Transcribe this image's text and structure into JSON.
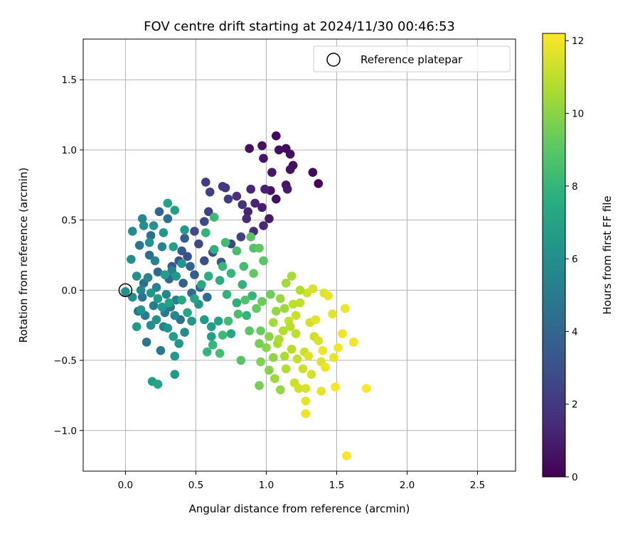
{
  "chart_data": {
    "type": "scatter",
    "title": "FOV centre drift starting at 2024/11/30 00:46:53",
    "xlabel": "Angular distance from reference (arcmin)",
    "ylabel": "Rotation from reference (arcmin)",
    "xlim": [
      -0.3,
      2.77
    ],
    "ylim": [
      -1.29,
      1.79
    ],
    "x_ticks": [
      0.0,
      0.5,
      1.0,
      1.5,
      2.0,
      2.5
    ],
    "x_tick_labels": [
      "0.0",
      "0.5",
      "1.0",
      "1.5",
      "2.0",
      "2.5"
    ],
    "y_ticks": [
      -1.0,
      -0.5,
      0.0,
      0.5,
      1.0,
      1.5
    ],
    "y_tick_labels": [
      "−1.0",
      "−0.5",
      "0.0",
      "0.5",
      "1.0",
      "1.5"
    ],
    "grid": true,
    "legend": {
      "position": "top-right",
      "entries": [
        "Reference platepar"
      ]
    },
    "reference_point": {
      "x": 0.0,
      "y": 0.0
    },
    "colorbar": {
      "label": "Hours from first FF file",
      "colormap": "viridis",
      "range": [
        0,
        12.2
      ],
      "ticks": [
        0,
        2,
        4,
        6,
        8,
        10,
        12
      ],
      "tick_labels": [
        "0",
        "2",
        "4",
        "6",
        "8",
        "10",
        "12"
      ]
    },
    "points": [
      [
        1.07,
        1.1,
        0.3
      ],
      [
        0.88,
        1.01,
        0.5
      ],
      [
        0.97,
        1.03,
        0.6
      ],
      [
        1.09,
        1.0,
        0.4
      ],
      [
        1.14,
        1.01,
        0.3
      ],
      [
        0.98,
        0.94,
        0.7
      ],
      [
        1.17,
        0.97,
        0.5
      ],
      [
        1.19,
        0.89,
        0.4
      ],
      [
        1.17,
        0.86,
        0.6
      ],
      [
        1.33,
        0.84,
        0.2
      ],
      [
        1.04,
        0.84,
        0.8
      ],
      [
        1.37,
        0.76,
        0.1
      ],
      [
        1.14,
        0.75,
        0.7
      ],
      [
        1.15,
        0.72,
        0.9
      ],
      [
        1.03,
        0.71,
        0.6
      ],
      [
        1.07,
        0.65,
        0.5
      ],
      [
        0.99,
        0.72,
        1.1
      ],
      [
        0.89,
        0.72,
        1.3
      ],
      [
        0.97,
        0.59,
        1.0
      ],
      [
        0.92,
        0.62,
        1.2
      ],
      [
        1.02,
        0.51,
        0.9
      ],
      [
        0.87,
        0.56,
        1.3
      ],
      [
        0.98,
        0.46,
        1.4
      ],
      [
        0.91,
        0.42,
        1.6
      ],
      [
        0.86,
        0.51,
        1.5
      ],
      [
        0.83,
        0.61,
        1.7
      ],
      [
        0.79,
        0.67,
        1.8
      ],
      [
        0.71,
        0.73,
        2.0
      ],
      [
        0.69,
        0.74,
        2.1
      ],
      [
        0.57,
        0.77,
        2.2
      ],
      [
        0.6,
        0.7,
        2.3
      ],
      [
        0.73,
        0.65,
        2.2
      ],
      [
        0.59,
        0.56,
        2.4
      ],
      [
        0.56,
        0.49,
        2.6
      ],
      [
        0.49,
        0.42,
        2.7
      ],
      [
        0.52,
        0.33,
        2.8
      ],
      [
        0.44,
        0.24,
        3.0
      ],
      [
        0.38,
        0.21,
        3.2
      ],
      [
        0.33,
        0.17,
        3.4
      ],
      [
        0.4,
        0.28,
        3.3
      ],
      [
        0.56,
        0.21,
        2.9
      ],
      [
        0.62,
        0.27,
        2.6
      ],
      [
        0.75,
        0.33,
        2.5
      ],
      [
        0.82,
        0.38,
        2.4
      ],
      [
        0.68,
        0.2,
        3.2
      ],
      [
        0.49,
        0.11,
        3.6
      ],
      [
        0.41,
        0.05,
        3.8
      ],
      [
        0.31,
        0.08,
        4.0
      ],
      [
        0.23,
        0.13,
        4.1
      ],
      [
        0.17,
        0.25,
        4.3
      ],
      [
        0.13,
        0.05,
        4.4
      ],
      [
        0.12,
        -0.05,
        4.6
      ],
      [
        0.09,
        -0.15,
        4.8
      ],
      [
        0.14,
        -0.18,
        5.0
      ],
      [
        0.2,
        -0.11,
        5.1
      ],
      [
        0.28,
        -0.16,
        5.0
      ],
      [
        0.36,
        -0.07,
        5.2
      ],
      [
        0.27,
        -0.26,
        5.3
      ],
      [
        0.32,
        -0.12,
        4.9
      ],
      [
        0.25,
        -0.43,
        5.0
      ],
      [
        0.15,
        -0.37,
        4.7
      ],
      [
        0.1,
        0.32,
        4.6
      ],
      [
        0.18,
        0.39,
        4.5
      ],
      [
        0.3,
        0.51,
        4.4
      ],
      [
        0.24,
        0.56,
        3.9
      ],
      [
        0.42,
        0.37,
        3.7
      ],
      [
        0.46,
        0.17,
        3.8
      ],
      [
        0.53,
        0.02,
        4.1
      ],
      [
        0.47,
        -0.02,
        4.3
      ],
      [
        0.58,
        -0.05,
        4.5
      ],
      [
        0.39,
        -0.21,
        4.7
      ],
      [
        0.21,
        0.21,
        5.4
      ],
      [
        0.26,
        0.31,
        5.6
      ],
      [
        0.12,
        0.51,
        5.8
      ],
      [
        0.05,
        0.42,
        5.9
      ],
      [
        0.04,
        0.22,
        6.0
      ],
      [
        0.08,
        0.1,
        6.1
      ],
      [
        0.0,
        -0.01,
        6.2
      ],
      [
        0.05,
        -0.05,
        6.0
      ],
      [
        0.11,
        0.0,
        5.7
      ],
      [
        0.16,
        0.09,
        5.5
      ],
      [
        0.22,
        0.02,
        5.5
      ],
      [
        0.29,
        -0.03,
        5.6
      ],
      [
        0.33,
        0.14,
        5.4
      ],
      [
        0.35,
        -0.18,
        5.7
      ],
      [
        0.42,
        -0.3,
        5.9
      ],
      [
        0.18,
        -0.25,
        6.1
      ],
      [
        0.22,
        -0.21,
        6.2
      ],
      [
        0.3,
        -0.27,
        6.3
      ],
      [
        0.38,
        -0.38,
        6.4
      ],
      [
        0.35,
        -0.47,
        6.6
      ],
      [
        0.35,
        -0.6,
        6.7
      ],
      [
        0.19,
        -0.65,
        6.9
      ],
      [
        0.23,
        -0.67,
        7.1
      ],
      [
        0.34,
        -0.33,
        6.8
      ],
      [
        0.47,
        -0.22,
        6.5
      ],
      [
        0.52,
        -0.1,
        6.4
      ],
      [
        0.56,
        -0.21,
        6.6
      ],
      [
        0.61,
        -0.26,
        6.8
      ],
      [
        0.66,
        -0.22,
        7.0
      ],
      [
        0.75,
        -0.31,
        7.2
      ],
      [
        0.61,
        -0.33,
        6.9
      ],
      [
        0.4,
        0.19,
        6.3
      ],
      [
        0.36,
        0.1,
        6.5
      ],
      [
        0.27,
        0.41,
        6.4
      ],
      [
        0.2,
        0.46,
        6.2
      ],
      [
        0.13,
        0.46,
        6.0
      ],
      [
        0.17,
        0.34,
        6.3
      ],
      [
        0.3,
        0.62,
        7.1
      ],
      [
        0.35,
        0.57,
        6.9
      ],
      [
        0.42,
        0.43,
        6.7
      ],
      [
        0.34,
        0.31,
        6.9
      ],
      [
        0.28,
        0.11,
        6.8
      ],
      [
        0.23,
        -0.06,
        6.7
      ],
      [
        0.18,
        -0.02,
        6.5
      ],
      [
        0.08,
        -0.26,
        6.6
      ],
      [
        0.11,
        -0.14,
        6.4
      ],
      [
        0.26,
        -0.12,
        6.6
      ],
      [
        0.31,
        -0.09,
        7.0
      ],
      [
        0.4,
        -0.07,
        7.3
      ],
      [
        0.44,
        -0.16,
        7.2
      ],
      [
        0.49,
        -0.06,
        7.1
      ],
      [
        0.54,
        0.04,
        7.4
      ],
      [
        0.59,
        0.1,
        7.6
      ],
      [
        0.67,
        0.07,
        7.5
      ],
      [
        0.72,
        -0.03,
        7.8
      ],
      [
        0.79,
        -0.09,
        7.7
      ],
      [
        0.86,
        -0.18,
        7.9
      ],
      [
        0.9,
        -0.04,
        8.0
      ],
      [
        0.83,
        0.04,
        7.9
      ],
      [
        0.75,
        0.12,
        8.1
      ],
      [
        0.69,
        0.17,
        8.2
      ],
      [
        0.63,
        0.29,
        7.7
      ],
      [
        0.57,
        0.41,
        7.9
      ],
      [
        0.63,
        0.52,
        8.3
      ],
      [
        0.71,
        0.34,
        8.4
      ],
      [
        0.79,
        0.28,
        8.6
      ],
      [
        0.84,
        0.17,
        8.5
      ],
      [
        0.91,
        0.3,
        8.7
      ],
      [
        0.89,
        0.38,
        8.9
      ],
      [
        0.95,
        0.3,
        9.1
      ],
      [
        0.98,
        0.21,
        9.0
      ],
      [
        0.91,
        0.12,
        9.2
      ],
      [
        0.85,
        -0.07,
        8.8
      ],
      [
        0.8,
        -0.17,
        8.6
      ],
      [
        0.73,
        -0.22,
        8.4
      ],
      [
        0.69,
        -0.32,
        8.3
      ],
      [
        0.62,
        -0.39,
        8.1
      ],
      [
        0.58,
        -0.44,
        8.0
      ],
      [
        0.67,
        -0.45,
        8.5
      ],
      [
        0.82,
        -0.5,
        8.9
      ],
      [
        0.88,
        -0.29,
        9.0
      ],
      [
        0.93,
        -0.13,
        9.2
      ],
      [
        0.97,
        -0.08,
        9.4
      ],
      [
        1.03,
        -0.03,
        9.5
      ],
      [
        0.96,
        -0.29,
        9.3
      ],
      [
        0.95,
        -0.38,
        9.6
      ],
      [
        0.96,
        -0.51,
        9.8
      ],
      [
        0.95,
        -0.68,
        9.6
      ],
      [
        1.02,
        -0.57,
        9.9
      ],
      [
        1.05,
        -0.48,
        10.1
      ],
      [
        1.02,
        -0.33,
        10.0
      ],
      [
        1.07,
        -0.15,
        10.2
      ],
      [
        1.1,
        -0.06,
        10.3
      ],
      [
        1.13,
        -0.13,
        10.4
      ],
      [
        1.05,
        -0.23,
        10.5
      ],
      [
        1.08,
        -0.38,
        10.6
      ],
      [
        1.13,
        -0.47,
        10.7
      ],
      [
        1.06,
        -0.63,
        10.4
      ],
      [
        1.1,
        -0.71,
        10.2
      ],
      [
        1.14,
        -0.56,
        10.8
      ],
      [
        1.18,
        -0.42,
        10.9
      ],
      [
        1.21,
        -0.31,
        11.0
      ],
      [
        1.16,
        -0.22,
        11.1
      ],
      [
        1.21,
        -0.18,
        11.2
      ],
      [
        1.24,
        -0.09,
        11.0
      ],
      [
        1.29,
        -0.02,
        11.3
      ],
      [
        1.33,
        0.01,
        11.5
      ],
      [
        1.41,
        -0.02,
        11.6
      ],
      [
        1.44,
        -0.04,
        11.8
      ],
      [
        1.47,
        -0.17,
        11.7
      ],
      [
        1.54,
        -0.31,
        11.9
      ],
      [
        1.62,
        -0.37,
        12.0
      ],
      [
        1.56,
        -0.13,
        11.9
      ],
      [
        1.48,
        -0.48,
        11.8
      ],
      [
        1.51,
        -0.41,
        12.0
      ],
      [
        1.39,
        -0.51,
        11.6
      ],
      [
        1.32,
        -0.6,
        11.4
      ],
      [
        1.26,
        -0.56,
        11.3
      ],
      [
        1.28,
        -0.7,
        11.5
      ],
      [
        1.28,
        -0.79,
        11.7
      ],
      [
        1.28,
        -0.88,
        11.9
      ],
      [
        1.39,
        -0.72,
        11.8
      ],
      [
        1.49,
        -0.69,
        12.1
      ],
      [
        1.71,
        -0.7,
        12.2
      ],
      [
        1.57,
        -1.18,
        12.1
      ],
      [
        1.2,
        -0.66,
        11.2
      ],
      [
        1.23,
        -0.7,
        11.4
      ],
      [
        1.34,
        -0.33,
        11.3
      ],
      [
        1.31,
        -0.23,
        11.4
      ],
      [
        1.37,
        -0.36,
        11.5
      ],
      [
        1.27,
        -0.44,
        11.2
      ],
      [
        1.22,
        -0.49,
        11.1
      ],
      [
        1.17,
        -0.26,
        10.9
      ],
      [
        1.24,
        0.0,
        10.8
      ],
      [
        1.18,
        0.1,
        10.6
      ],
      [
        1.14,
        0.05,
        10.5
      ],
      [
        1.19,
        -0.1,
        11.0
      ],
      [
        1.35,
        -0.21,
        11.7
      ],
      [
        1.4,
        -0.43,
        11.9
      ],
      [
        1.3,
        -0.47,
        11.6
      ],
      [
        1.42,
        -0.55,
        11.9
      ],
      [
        1.12,
        -0.29,
        10.8
      ],
      [
        1.09,
        -0.35,
        10.7
      ],
      [
        1.0,
        -0.41,
        10.0
      ]
    ]
  }
}
